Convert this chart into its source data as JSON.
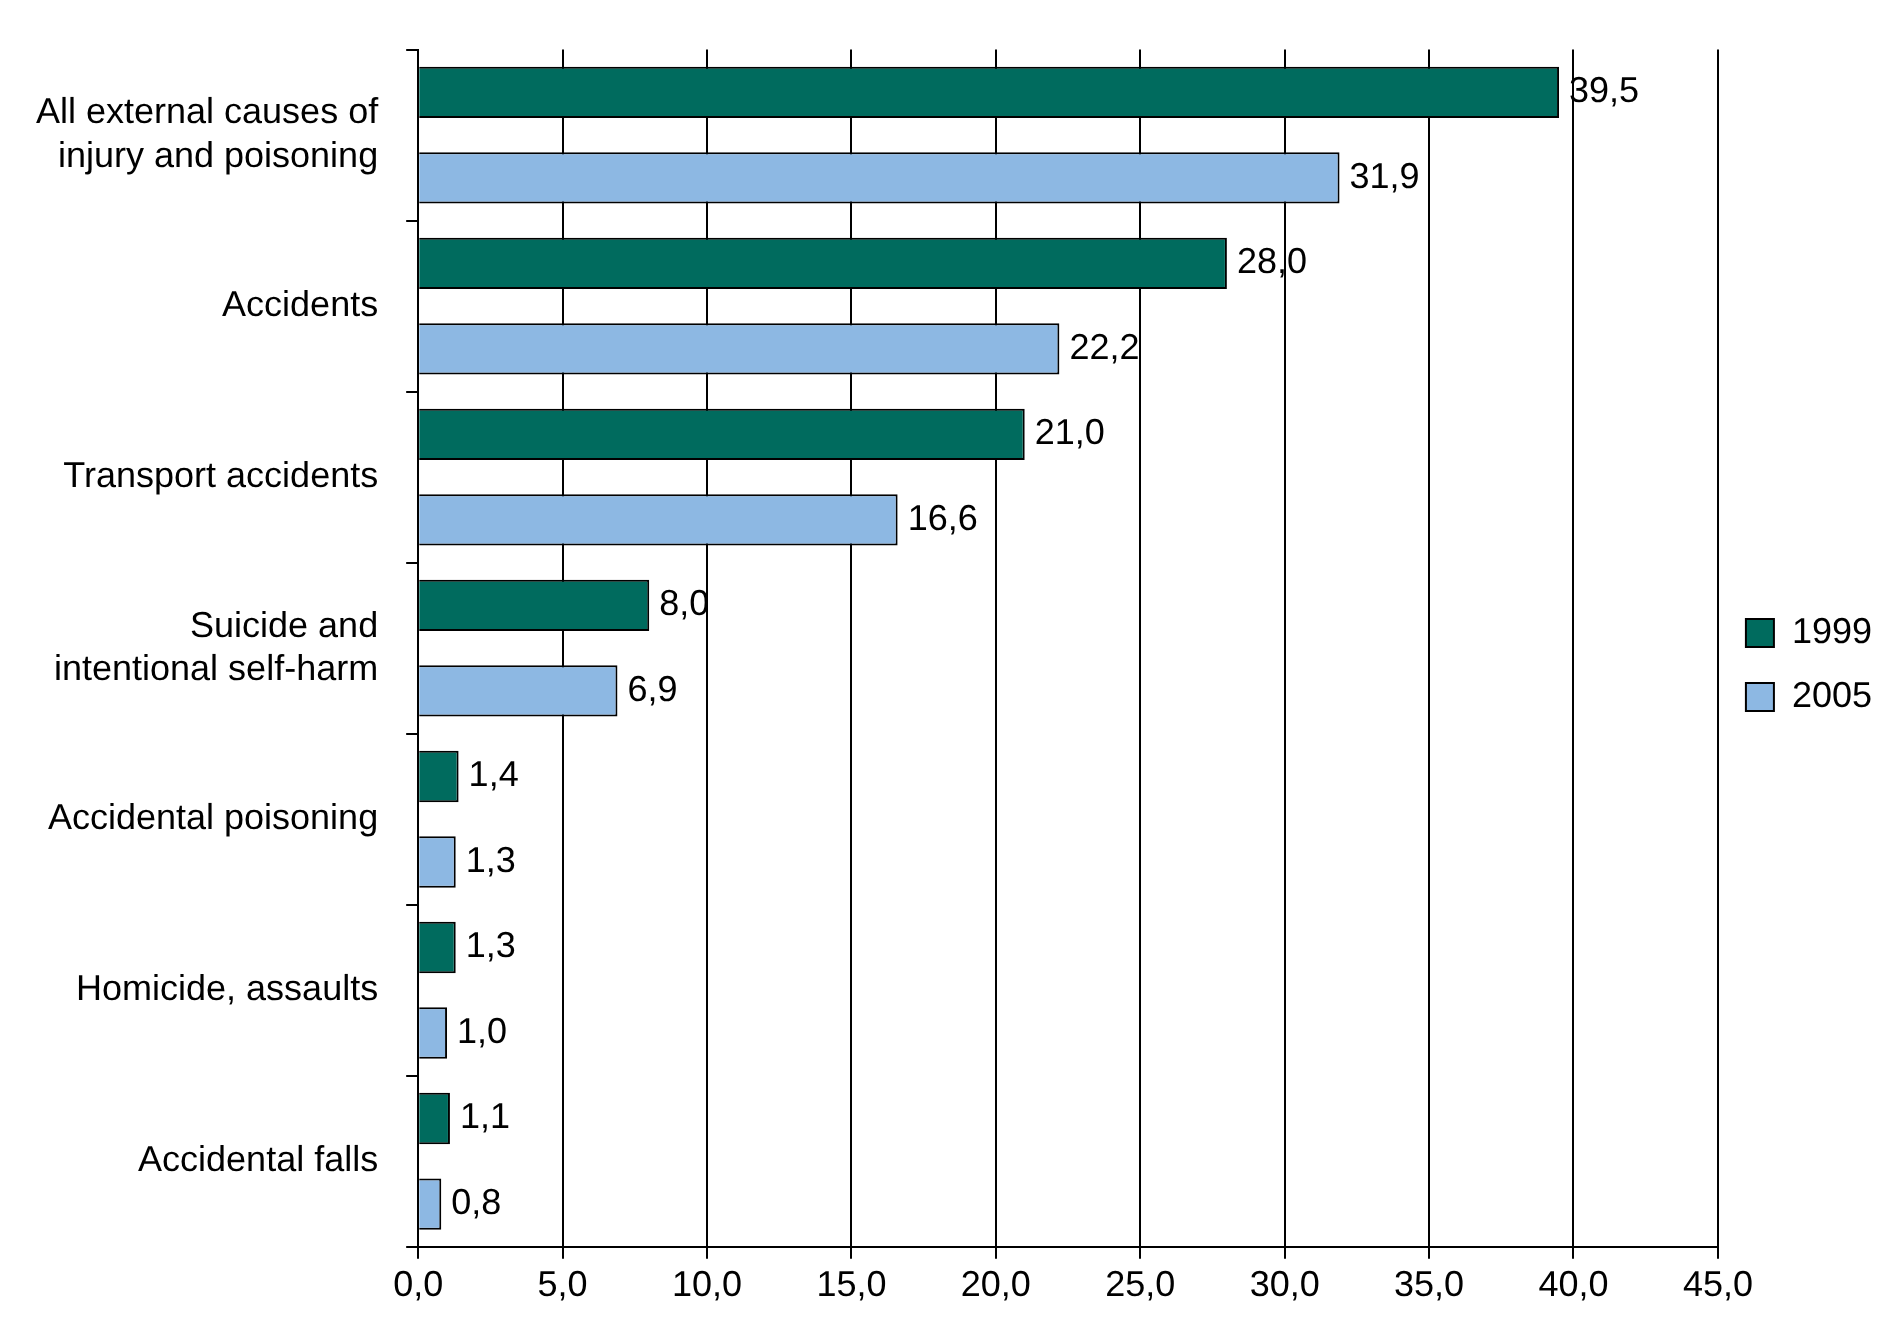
{
  "chart_data": {
    "type": "bar",
    "orientation": "horizontal",
    "categories": [
      "All external causes of injury and poisoning",
      "Accidents",
      "Transport accidents",
      "Suicide and intentional self-harm",
      "Accidental poisoning",
      "Homicide, assaults",
      "Accidental falls"
    ],
    "series": [
      {
        "name": "1999",
        "color": "#006b5e",
        "values": [
          39.5,
          28.0,
          21.0,
          8.0,
          1.4,
          1.3,
          1.1
        ],
        "value_labels": [
          "39,5",
          "28,0",
          "21,0",
          "8,0",
          "1,4",
          "1,3",
          "1,1"
        ]
      },
      {
        "name": "2005",
        "color": "#8db8e3",
        "values": [
          31.9,
          22.2,
          16.6,
          6.9,
          1.3,
          1.0,
          0.8
        ],
        "value_labels": [
          "31,9",
          "22,2",
          "16,6",
          "6,9",
          "1,3",
          "1,0",
          "0,8"
        ]
      }
    ],
    "xlim": [
      0,
      45
    ],
    "xticks": [
      {
        "value": 0,
        "label": "0,0"
      },
      {
        "value": 5,
        "label": "5,0"
      },
      {
        "value": 10,
        "label": "10,0"
      },
      {
        "value": 15,
        "label": "15,0"
      },
      {
        "value": 20,
        "label": "20,0"
      },
      {
        "value": 25,
        "label": "25,0"
      },
      {
        "value": 30,
        "label": "30,0"
      },
      {
        "value": 35,
        "label": "35,0"
      },
      {
        "value": 40,
        "label": "40,0"
      },
      {
        "value": 45,
        "label": "45,0"
      }
    ],
    "grid": "x",
    "legend": "right"
  }
}
